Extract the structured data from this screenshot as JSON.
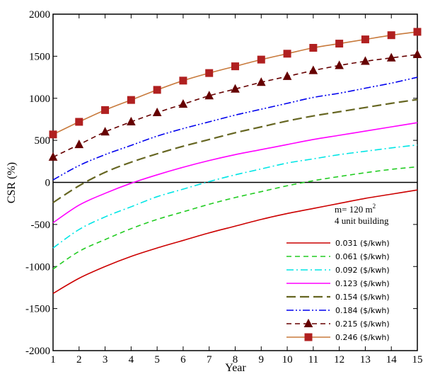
{
  "chart_data": {
    "type": "line",
    "xlabel": "Year",
    "ylabel": "CSR (%)",
    "xlim": [
      1,
      15
    ],
    "ylim": [
      -2000,
      2000
    ],
    "x_ticks": [
      1,
      2,
      3,
      4,
      5,
      6,
      7,
      8,
      9,
      10,
      11,
      12,
      13,
      14,
      15
    ],
    "y_ticks": [
      -2000,
      -1500,
      -1000,
      -500,
      0,
      500,
      1000,
      1500,
      2000
    ],
    "zero_line": true,
    "grid": false,
    "legend_position": "bottom-right",
    "annotation": {
      "line1": "m= 120 m",
      "line1_sup": "2",
      "line2": "4 unit building"
    },
    "x": [
      1,
      2,
      3,
      4,
      5,
      6,
      7,
      8,
      9,
      10,
      11,
      12,
      13,
      14,
      15
    ],
    "series": [
      {
        "name": "0.031 ($/kwh)",
        "color": "#cc0000",
        "dash": "solid",
        "marker": "none",
        "values": [
          -1320,
          -1140,
          -1000,
          -880,
          -780,
          -690,
          -600,
          -520,
          -440,
          -370,
          -310,
          -250,
          -190,
          -140,
          -90
        ]
      },
      {
        "name": "0.061 ($/kwh)",
        "color": "#22cc22",
        "dash": "dashed",
        "marker": "none",
        "values": [
          -1030,
          -820,
          -680,
          -550,
          -440,
          -350,
          -260,
          -180,
          -110,
          -40,
          20,
          70,
          115,
          155,
          185
        ]
      },
      {
        "name": "0.092 ($/kwh)",
        "color": "#00e5e5",
        "dash": "dashdot",
        "marker": "none",
        "values": [
          -780,
          -560,
          -410,
          -290,
          -170,
          -80,
          10,
          90,
          160,
          230,
          280,
          330,
          370,
          410,
          445
        ]
      },
      {
        "name": "0.123 ($/kwh)",
        "color": "#ff00ff",
        "dash": "solid",
        "marker": "none",
        "values": [
          -480,
          -270,
          -130,
          -10,
          90,
          180,
          260,
          330,
          390,
          450,
          510,
          560,
          610,
          660,
          710
        ]
      },
      {
        "name": "0.154 ($/kwh)",
        "color": "#666622",
        "dash": "longdash",
        "marker": "none",
        "values": [
          -240,
          -40,
          120,
          240,
          340,
          430,
          510,
          590,
          660,
          730,
          790,
          840,
          890,
          940,
          985
        ]
      },
      {
        "name": "0.184 ($/kwh)",
        "color": "#0000ee",
        "dash": "dashdotdot",
        "marker": "none",
        "values": [
          30,
          200,
          330,
          440,
          550,
          640,
          720,
          800,
          870,
          940,
          1010,
          1060,
          1120,
          1180,
          1250
        ]
      },
      {
        "name": "0.215 ($/kwh)",
        "color": "#660000",
        "dash": "dashed",
        "marker": "triangle",
        "values": [
          300,
          450,
          600,
          720,
          830,
          930,
          1030,
          1110,
          1190,
          1260,
          1330,
          1390,
          1440,
          1480,
          1520
        ]
      },
      {
        "name": "0.246 ($/kwh)",
        "color": "#b02020",
        "line_color": "#c87a3c",
        "dash": "solid",
        "marker": "square",
        "values": [
          570,
          720,
          860,
          980,
          1100,
          1210,
          1300,
          1380,
          1460,
          1530,
          1600,
          1650,
          1700,
          1750,
          1790
        ]
      }
    ]
  }
}
